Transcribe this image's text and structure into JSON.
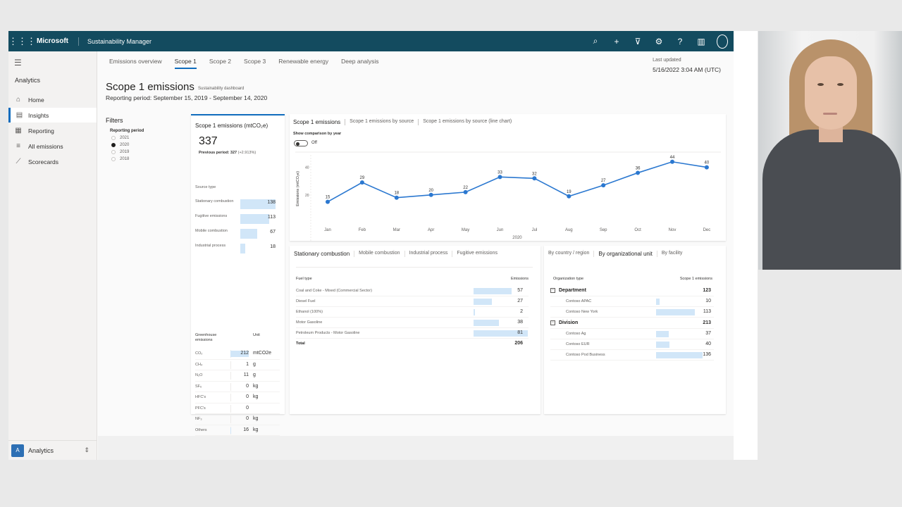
{
  "topbar": {
    "brand": "Microsoft",
    "app_name": "Sustainability Manager",
    "icons": [
      "search-icon",
      "plus-icon",
      "filter-icon",
      "gear-icon",
      "help-icon",
      "book-icon",
      "avatar"
    ]
  },
  "sidebar": {
    "section": "Analytics",
    "items": [
      {
        "label": "Home",
        "icon": "home-icon"
      },
      {
        "label": "Insights",
        "icon": "insights-icon",
        "active": true
      },
      {
        "label": "Reporting",
        "icon": "reporting-icon"
      },
      {
        "label": "All emissions",
        "icon": "list-icon"
      },
      {
        "label": "Scorecards",
        "icon": "scorecards-icon"
      }
    ],
    "area_badge": "A",
    "area_label": "Analytics"
  },
  "tabs": [
    "Emissions overview",
    "Scope 1",
    "Scope 2",
    "Scope 3",
    "Renewable energy",
    "Deep analysis"
  ],
  "active_tab": "Scope 1",
  "last_updated": {
    "label": "Last updated",
    "value": "5/16/2022 3:04 AM (UTC)"
  },
  "page": {
    "title": "Scope 1 emissions",
    "subtitle": "Sustainability dashboard",
    "period": "Reporting period: September 15, 2019 - September 14, 2020"
  },
  "filters": {
    "title": "Filters",
    "sub": "Reporting period",
    "options": [
      "2021",
      "2020",
      "2019",
      "2018"
    ],
    "selected": "2020"
  },
  "summary": {
    "title": "Scope 1 emissions (mtCO₂e)",
    "value": "337",
    "previous_label": "Previous period: 327",
    "previous_change": "(+2.913%)",
    "source_header": "Source type",
    "sources": [
      {
        "label": "Stationary combustion",
        "value": 138
      },
      {
        "label": "Fugitive emissions",
        "value": 113
      },
      {
        "label": "Mobile combustion",
        "value": 67
      },
      {
        "label": "Industrial process",
        "value": 18
      }
    ],
    "gh_header": "Greenhouse emissions",
    "gh_unit_header": "Unit",
    "gases": [
      {
        "label": "CO₂",
        "value": "212",
        "unit": "mtCO2e",
        "fraction": 1.0
      },
      {
        "label": "CH₄",
        "value": "1",
        "unit": "g",
        "fraction": 0.0
      },
      {
        "label": "N₂O",
        "value": "11",
        "unit": "g",
        "fraction": 0.0
      },
      {
        "label": "SF₆",
        "value": "0",
        "unit": "kg",
        "fraction": 0.0
      },
      {
        "label": "HFC's",
        "value": "0",
        "unit": "kg",
        "fraction": 0.0
      },
      {
        "label": "PFC's",
        "value": "0",
        "unit": "",
        "fraction": 0.0
      },
      {
        "label": "NF₃",
        "value": "0",
        "unit": "kg",
        "fraction": 0.0
      },
      {
        "label": "Others",
        "value": "16",
        "unit": "kg",
        "fraction": 0.05
      }
    ]
  },
  "chart_card": {
    "tabs": [
      "Scope 1 emissions",
      "Scope 1 emissions by source",
      "Scope 1 emissions by source (line chart)"
    ],
    "comparison_label": "Show comparison by year",
    "toggle_label": "Off"
  },
  "chart_data": {
    "type": "line",
    "categories": [
      "Jan",
      "Feb",
      "Mar",
      "Apr",
      "May",
      "Jun",
      "Jul",
      "Aug",
      "Sep",
      "Oct",
      "Nov",
      "Dec"
    ],
    "values": [
      15,
      29,
      18,
      20,
      22,
      33,
      32,
      19,
      27,
      36,
      44,
      40
    ],
    "xlabel": "2020",
    "ylabel": "Emissions (mtCO₂e)",
    "yticks": [
      20,
      40
    ],
    "ylim": [
      0,
      50
    ],
    "color": "#2b78d0"
  },
  "fuel_card": {
    "tabs": [
      "Stationary combustion",
      "Mobile combustion",
      "Industrial process",
      "Fugitive emissions"
    ],
    "col1": "Fuel type",
    "col2": "Emissions",
    "rows": [
      {
        "label": "Coal and Coke - Mixed (Commercial Sector)",
        "value": 57
      },
      {
        "label": "Diesel Fuel",
        "value": 27
      },
      {
        "label": "Ethanol (100%)",
        "value": 2
      },
      {
        "label": "Motor Gasoline",
        "value": 38
      },
      {
        "label": "Petroleum Products - Motor Gasoline",
        "value": 81
      }
    ],
    "total_label": "Total",
    "total_value": "206"
  },
  "org_card": {
    "tabs": [
      "By country / region",
      "By organizational unit",
      "By facility"
    ],
    "active_tab": "By organizational unit",
    "col1": "Organization type",
    "col2": "Scope 1 emissions",
    "rows": [
      {
        "label": "Department",
        "value": 123,
        "group": true
      },
      {
        "label": "Contoso APAC",
        "value": 10
      },
      {
        "label": "Contoso New York",
        "value": 113
      },
      {
        "label": "Division",
        "value": 213,
        "group": true
      },
      {
        "label": "Contoso Ag",
        "value": 37
      },
      {
        "label": "Contoso EUR",
        "value": 40
      },
      {
        "label": "Contoso Pod Business",
        "value": 136
      }
    ]
  }
}
